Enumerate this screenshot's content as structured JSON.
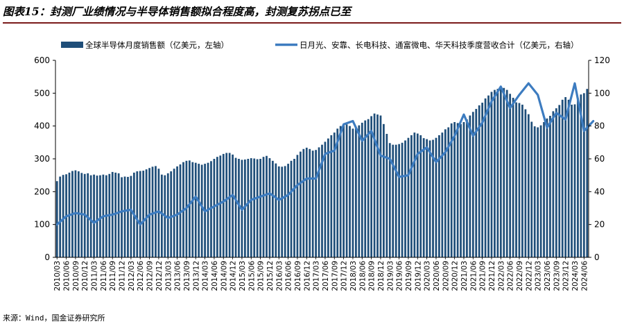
{
  "header": {
    "title": "图表15：封测厂业绩情况与半导体销售额拟合程度高，封测复苏拐点已至"
  },
  "footer": {
    "source": "来源：Wind，国金证券研究所"
  },
  "chart_data": {
    "type": "bar",
    "colors": {
      "bar": "#1f4e79",
      "line": "#3d7cc0",
      "axis": "#000000"
    },
    "legend": {
      "position": "top",
      "entries": [
        "全球半导体月度销售额（亿美元，左轴）",
        "日月光、安靠、长电科技、通富微电、华天科技季度营收合计（亿美元，右轴）"
      ]
    },
    "y_left": {
      "min": 0,
      "max": 600,
      "ticks": [
        "0",
        "100",
        "200",
        "300",
        "400",
        "500",
        "600"
      ]
    },
    "y_right": {
      "min": 0,
      "max": 120,
      "ticks": [
        "0",
        "20",
        "40",
        "60",
        "80",
        "100",
        "120"
      ]
    },
    "grid": false,
    "x_tick_labels": [
      "2010/03",
      "2010/06",
      "2010/09",
      "2010/12",
      "2011/03",
      "2011/06",
      "2011/09",
      "2011/12",
      "2012/03",
      "2012/06",
      "2012/09",
      "2012/12",
      "2013/03",
      "2013/06",
      "2013/09",
      "2013/12",
      "2014/03",
      "2014/06",
      "2014/09",
      "2014/12",
      "2015/03",
      "2015/06",
      "2015/09",
      "2015/12",
      "2016/03",
      "2016/06",
      "2016/09",
      "2016/12",
      "2017/03",
      "2017/06",
      "2017/09",
      "2017/12",
      "2018/03",
      "2018/06",
      "2018/09",
      "2018/12",
      "2019/03",
      "2019/06",
      "2019/09",
      "2019/12",
      "2020/03",
      "2020/06",
      "2020/09",
      "2020/12",
      "2021/03",
      "2021/06",
      "2021/09",
      "2021/12",
      "2022/03",
      "2022/06",
      "2022/09",
      "2022/12",
      "2023/03",
      "2023/06",
      "2023/09",
      "2023/12",
      "2024/03",
      "2024/06"
    ],
    "series": [
      {
        "name": "全球半导体月度销售额（亿美元，左轴）",
        "axis": "left",
        "start": "2010-03",
        "frequency": "monthly",
        "values": [
          232,
          246,
          251,
          253,
          258,
          263,
          265,
          262,
          257,
          254,
          256,
          250,
          252,
          249,
          250,
          252,
          250,
          254,
          260,
          258,
          256,
          244,
          246,
          245,
          248,
          258,
          262,
          263,
          264,
          268,
          272,
          276,
          278,
          270,
          252,
          250,
          256,
          262,
          270,
          277,
          283,
          290,
          294,
          295,
          290,
          288,
          285,
          282,
          285,
          288,
          293,
          300,
          306,
          310,
          315,
          318,
          318,
          313,
          303,
          300,
          297,
          298,
          300,
          302,
          301,
          299,
          300,
          306,
          309,
          302,
          294,
          286,
          277,
          276,
          278,
          285,
          294,
          300,
          312,
          322,
          330,
          334,
          330,
          325,
          327,
          335,
          343,
          352,
          362,
          372,
          380,
          392,
          400,
          406,
          405,
          400,
          392,
          394,
          402,
          410,
          417,
          421,
          430,
          438,
          435,
          432,
          406,
          376,
          348,
          343,
          343,
          345,
          349,
          356,
          364,
          372,
          380,
          377,
          372,
          363,
          360,
          356,
          358,
          364,
          372,
          380,
          390,
          396,
          408,
          412,
          409,
          406,
          412,
          420,
          432,
          443,
          452,
          463,
          471,
          484,
          493,
          504,
          510,
          513,
          519,
          516,
          510,
          498,
          486,
          472,
          470,
          465,
          451,
          436,
          413,
          399,
          396,
          402,
          412,
          423,
          431,
          445,
          454,
          464,
          480,
          488,
          480,
          465,
          466,
          485,
          496,
          500,
          513
        ]
      },
      {
        "name": "日月光、安靠、长电科技、通富微电、华天科技季度营收合计（亿美元，右轴）",
        "axis": "right",
        "start": "2010-03",
        "frequency": "quarterly",
        "values": [
          20,
          25,
          27,
          26,
          21,
          25,
          26,
          28,
          29,
          20,
          26,
          28,
          24,
          26,
          30,
          37,
          28,
          31,
          34,
          38,
          29,
          35,
          37,
          39,
          35,
          38,
          44,
          48,
          48,
          63,
          65,
          81,
          83,
          71,
          77,
          62,
          60,
          49,
          50,
          63,
          67,
          58,
          64,
          74,
          87,
          74,
          82,
          95,
          104,
          91,
          99,
          106,
          99,
          79,
          88,
          84,
          106,
          77,
          83
        ]
      }
    ]
  }
}
